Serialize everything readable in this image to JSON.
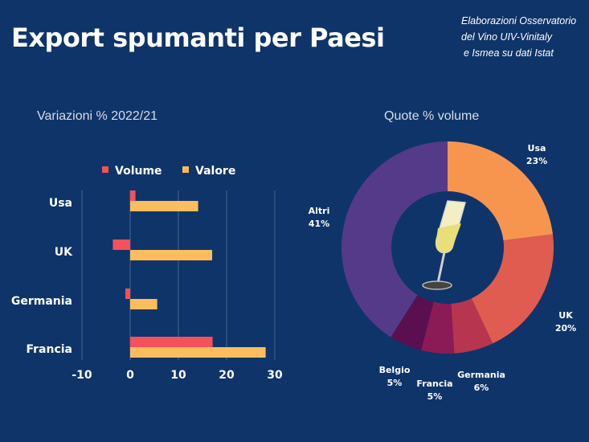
{
  "title": "Export spumanti per Paesi",
  "source": [
    "Elaborazioni Osservatorio",
    "del Vino UIV-Vinitaly",
    "e Ismea su dati Istat"
  ],
  "chart_data": [
    {
      "type": "bar",
      "orientation": "horizontal",
      "title": "Variazioni % 2022/21",
      "categories": [
        "Usa",
        "UK",
        "Germania",
        "Francia"
      ],
      "series": [
        {
          "name": "Volume",
          "color": "#f4515a",
          "values": [
            1.1,
            -3.6,
            -1.0,
            17.1
          ]
        },
        {
          "name": "Valore",
          "color": "#fdbd5c",
          "values": [
            14.1,
            17.0,
            5.6,
            28.1
          ]
        }
      ],
      "xlim": [
        -10,
        30
      ],
      "xticks": [
        "-10",
        "0",
        "10",
        "20",
        "30"
      ],
      "grid": true,
      "legend": "top"
    },
    {
      "type": "pie",
      "donut": true,
      "title": "Quote % volume",
      "slices": [
        {
          "label": "Usa",
          "value": 23,
          "text": "23%",
          "color": "#f7954f"
        },
        {
          "label": "UK",
          "value": 20,
          "text": "20%",
          "color": "#e05c50"
        },
        {
          "label": "Germania",
          "value": 6,
          "text": "6%",
          "color": "#b8354f"
        },
        {
          "label": "Francia",
          "value": 5,
          "text": "5%",
          "color": "#8b1b56"
        },
        {
          "label": "Belgio",
          "value": 5,
          "text": "5%",
          "color": "#5a1050"
        },
        {
          "label": "Altri",
          "value": 41,
          "text": "41%",
          "color": "#553a8a"
        }
      ],
      "center_icon": "champagne-glass-icon"
    }
  ]
}
